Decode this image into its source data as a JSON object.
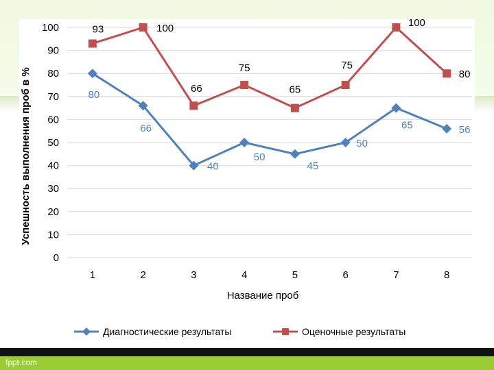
{
  "footer": {
    "text": "fppt.com"
  },
  "chart_data": {
    "type": "line",
    "categories": [
      "1",
      "2",
      "3",
      "4",
      "5",
      "6",
      "7",
      "8"
    ],
    "ylabel": "Успешность выполнения проб в %",
    "xlabel": "Название проб",
    "ylim": [
      0,
      100
    ],
    "yticks": [
      0,
      10,
      20,
      30,
      40,
      50,
      60,
      70,
      80,
      90,
      100
    ],
    "grid": "horizontal",
    "legend": "bottom",
    "series": [
      {
        "name": "Диагностические результаты",
        "color": "#4f81bd",
        "marker": "diamond",
        "values": [
          80,
          66,
          40,
          50,
          45,
          50,
          65,
          56
        ]
      },
      {
        "name": "Оценочные результаты",
        "color": "#c0504d",
        "marker": "square",
        "values": [
          93,
          100,
          66,
          75,
          65,
          75,
          100,
          80
        ]
      }
    ]
  }
}
